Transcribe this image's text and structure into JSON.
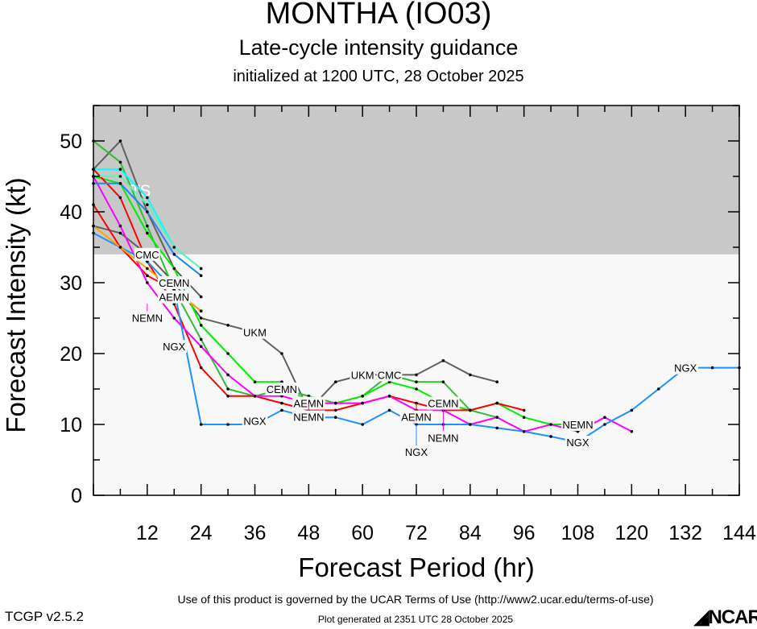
{
  "title": "MONTHA (IO03)",
  "subtitle": "Late-cycle intensity guidance",
  "initialized": "initialized at 1200 UTC, 28 October 2025",
  "footer": {
    "terms": "Use of this product is governed by the UCAR Terms of Use (http://www2.ucar.edu/terms-of-use)",
    "generated": "Plot generated at 2351 UTC   28 October 2025",
    "version": "TCGP v2.5.2",
    "logo": "NCAR"
  },
  "chart_data": {
    "type": "line",
    "xlabel": "Forecast Period (hr)",
    "ylabel": "Forecast Intensity (kt)",
    "xlim": [
      0,
      144
    ],
    "ylim": [
      0,
      55
    ],
    "xticks": [
      12,
      24,
      36,
      48,
      60,
      72,
      84,
      96,
      108,
      120,
      132,
      144
    ],
    "yticks": [
      0,
      10,
      20,
      30,
      40,
      50
    ],
    "grid": false,
    "shaded_region": {
      "label": "TS",
      "from": 34,
      "to": 55,
      "color": "#c8c8c8"
    },
    "hours_step": 6,
    "series": [
      {
        "name": "UKM",
        "color": "#606060",
        "label_at": [
          [
            36,
            23
          ],
          [
            60,
            17
          ]
        ],
        "values": [
          38,
          37,
          34,
          30,
          25,
          24,
          23,
          20,
          12,
          16,
          17,
          17,
          17,
          19,
          17,
          16
        ]
      },
      {
        "color": "#606060",
        "values": [
          46,
          50,
          40,
          32,
          28
        ]
      },
      {
        "name": "CMC",
        "color": "#33bb33",
        "label_at": [
          [
            12,
            34
          ],
          [
            66,
            17
          ]
        ],
        "values": [
          50,
          47,
          38,
          29,
          22,
          15,
          14,
          15,
          14,
          13,
          14,
          17,
          16,
          16,
          12,
          11
        ]
      },
      {
        "name": "CEMN",
        "color": "#00ee00",
        "label_at": [
          [
            18,
            30
          ],
          [
            42,
            15
          ],
          [
            78,
            13
          ]
        ],
        "values": [
          45,
          44,
          37,
          32,
          24,
          20,
          16,
          16,
          13,
          13,
          14,
          16,
          15,
          13,
          12,
          13,
          11,
          10,
          10
        ]
      },
      {
        "name": "AEMN",
        "color": "#ff0000",
        "label_at": [
          [
            18,
            28
          ],
          [
            48,
            13
          ],
          [
            72,
            13
          ]
        ],
        "values": [
          46,
          42,
          33,
          27,
          18,
          14,
          14,
          13,
          12,
          12,
          13,
          14,
          13,
          12,
          12,
          13,
          12
        ]
      },
      {
        "color": "#ff0000",
        "values": [
          41,
          35,
          31,
          29,
          26
        ]
      },
      {
        "name": "NEMN",
        "color": "#ff00ff",
        "label_at": [
          [
            12,
            27
          ],
          [
            48,
            13
          ],
          [
            78,
            12
          ],
          [
            108,
            10
          ]
        ],
        "values": [
          45,
          38,
          30,
          25,
          21,
          17,
          14,
          14,
          13,
          13,
          13,
          14,
          12,
          12,
          10,
          11,
          9,
          10,
          9,
          11,
          9
        ]
      },
      {
        "name": "NGX",
        "color": "#1e90ff",
        "label_at": [
          [
            18,
            21
          ],
          [
            36,
            10.5
          ],
          [
            72,
            10
          ],
          [
            108,
            7.5
          ],
          [
            132,
            18
          ]
        ],
        "values": [
          37,
          35,
          33,
          29,
          10,
          10,
          10,
          12,
          11,
          11,
          10,
          12,
          10,
          10,
          10,
          9.5,
          9,
          8.3,
          7.5,
          10,
          12,
          15,
          18,
          18,
          18
        ]
      },
      {
        "color": "#00ffff",
        "values": [
          46,
          46,
          42,
          35,
          32
        ]
      },
      {
        "color": "#66eebb",
        "values": [
          45,
          45,
          41,
          35,
          32
        ]
      },
      {
        "color": "#2288ee",
        "values": [
          44,
          44,
          40,
          34,
          31
        ]
      },
      {
        "color": "#ffa500",
        "values": [
          38,
          35,
          32,
          29,
          26
        ]
      }
    ]
  }
}
